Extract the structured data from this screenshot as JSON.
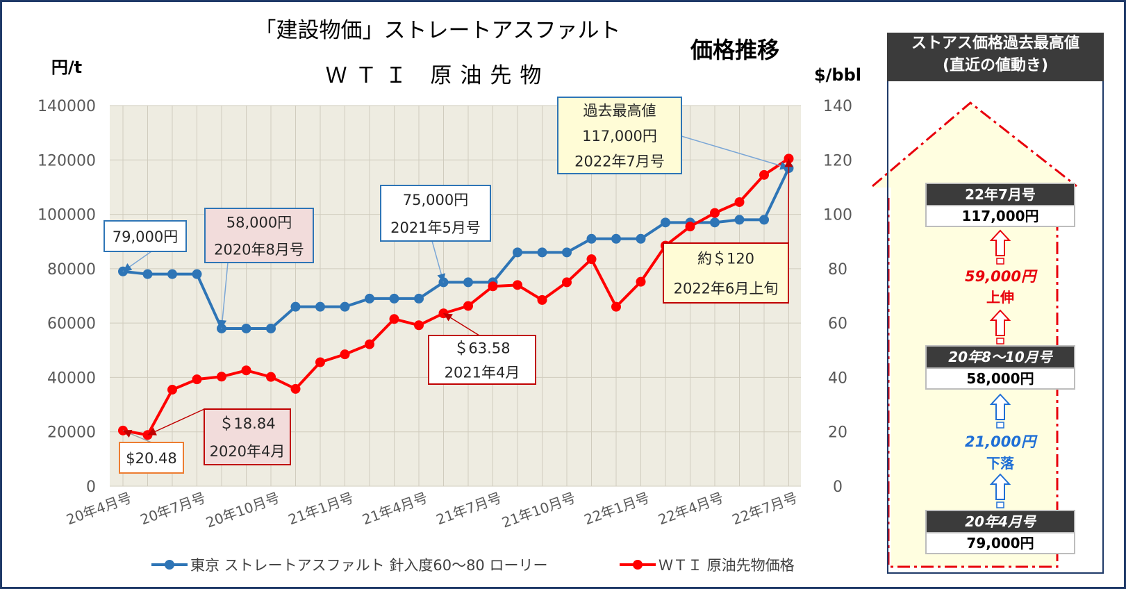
{
  "chart_data": {
    "type": "line",
    "title_line1": "「建設物価」ストレートアスファルト",
    "title_line2": "ＷＴＩ 原油先物",
    "title_right": "価格推移",
    "y_left_label": "円/t",
    "y_right_label": "$/bbl",
    "y_left_lim": [
      0,
      140000
    ],
    "y_left_ticks": [
      "0",
      "20000",
      "40000",
      "60000",
      "80000",
      "100000",
      "120000",
      "140000"
    ],
    "y_right_lim": [
      0,
      140
    ],
    "y_right_ticks": [
      "0",
      "20",
      "40",
      "60",
      "80",
      "100",
      "120",
      "140"
    ],
    "x_tick_labels": [
      "20年4月号",
      "20年7月号",
      "20年10月号",
      "21年1月号",
      "21年4月号",
      "21年7月号",
      "21年10月号",
      "22年1月号",
      "22年4月号",
      "22年7月号"
    ],
    "x": [
      "20年4月号",
      "20年5月号",
      "20年6月号",
      "20年7月号",
      "20年8月号",
      "20年9月号",
      "20年10月号",
      "20年11月号",
      "20年12月号",
      "21年1月号",
      "21年2月号",
      "21年3月号",
      "21年4月号",
      "21年5月号",
      "21年6月号",
      "21年7月号",
      "21年8月号",
      "21年9月号",
      "21年10月号",
      "21年11月号",
      "21年12月号",
      "22年1月号",
      "22年2月号",
      "22年3月号",
      "22年4月号",
      "22年5月号",
      "22年6月号",
      "22年7月号"
    ],
    "grid": true,
    "legend_position": "bottom",
    "series": [
      {
        "name": "東京 ストレートアスファルト 針入度60～80 ローリー",
        "axis": "left",
        "color": "#2e75b6",
        "values": [
          79000,
          78000,
          78000,
          78000,
          58000,
          58000,
          58000,
          66000,
          66000,
          66000,
          69000,
          69000,
          69000,
          75000,
          75000,
          75000,
          86000,
          86000,
          86000,
          91000,
          91000,
          91000,
          97000,
          97000,
          97000,
          98000,
          98000,
          117000
        ]
      },
      {
        "name": "ＷＴＩ 原油先物価格",
        "axis": "right",
        "color": "#ff0000",
        "values": [
          20.48,
          18.84,
          35.5,
          39.3,
          40.3,
          42.6,
          40.2,
          35.8,
          45.6,
          48.5,
          52.2,
          61.5,
          59.2,
          63.58,
          66.3,
          73.5,
          74.0,
          68.5,
          75.0,
          83.5,
          66.0,
          75.2,
          88.5,
          95.5,
          100.5,
          104.5,
          114.5,
          120.5
        ]
      }
    ],
    "annotations": [
      {
        "lines": [
          "79,000円"
        ],
        "series": 0,
        "index": 0,
        "style": "blue"
      },
      {
        "lines": [
          "58,000円",
          "2020年8月号"
        ],
        "series": 0,
        "index": 4,
        "style": "blue-pink"
      },
      {
        "lines": [
          "75,000円",
          "2021年5月号"
        ],
        "series": 0,
        "index": 13,
        "style": "blue"
      },
      {
        "lines": [
          "過去最高値",
          "117,000円",
          "2022年7月号"
        ],
        "series": 0,
        "index": 27,
        "style": "blue-yellow"
      },
      {
        "lines": [
          "$20.48"
        ],
        "series": 1,
        "index": 0,
        "style": "orange"
      },
      {
        "lines": [
          "＄18.84",
          "2020年4月"
        ],
        "series": 1,
        "index": 1,
        "style": "red-pink"
      },
      {
        "lines": [
          "＄63.58",
          "2021年4月"
        ],
        "series": 1,
        "index": 13,
        "style": "red"
      },
      {
        "lines": [
          "約＄120",
          "2022年6月上旬"
        ],
        "series": 1,
        "index": 27,
        "style": "red-yellow"
      }
    ]
  },
  "side_panel": {
    "header_line1": "ストアス価格過去最高値",
    "header_line2": "(直近の値動き)",
    "latest_label": "22年7月号",
    "latest_value": "117,000円",
    "rise_amount": "59,000円",
    "rise_word": "上伸",
    "low_label": "20年8～10月号",
    "low_value": "58,000円",
    "fall_amount": "21,000円",
    "fall_word": "下落",
    "start_label": "20年4月号",
    "start_value": "79,000円",
    "color_rise": "#e8000b",
    "color_fall": "#1f6fd6"
  }
}
